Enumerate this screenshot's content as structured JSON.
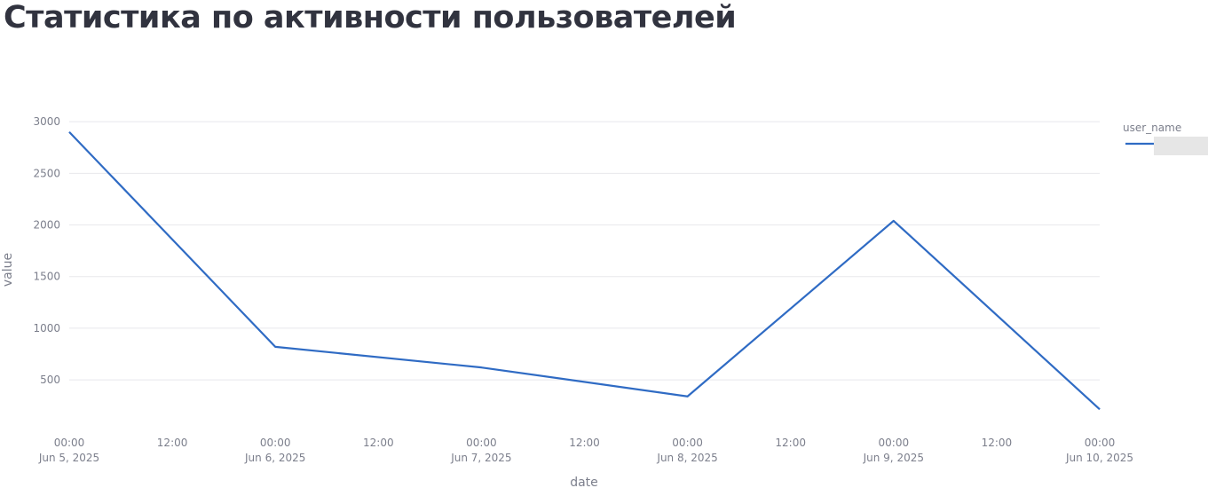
{
  "title": "Статистика по активности пользователей",
  "chart_data": {
    "type": "line",
    "x_label": "date",
    "y_label": "value",
    "legend_title": "user_name",
    "legend": "right",
    "x": [
      "2025-06-05",
      "2025-06-06",
      "2025-06-07",
      "2025-06-08",
      "2025-06-09",
      "2025-06-10"
    ],
    "series": [
      {
        "color": "#2f6bc4",
        "values": [
          2900,
          820,
          620,
          340,
          2040,
          215
        ]
      }
    ],
    "xlim": [
      "2025-06-05 00:00",
      "2025-06-10 00:00"
    ],
    "xticks": [
      {
        "value": "2025-06-05 00:00",
        "label": [
          "00:00",
          "Jun 5, 2025"
        ]
      },
      {
        "value": "2025-06-05 12:00",
        "label": "12:00"
      },
      {
        "value": "2025-06-06 00:00",
        "label": [
          "00:00",
          "Jun 6, 2025"
        ]
      },
      {
        "value": "2025-06-06 12:00",
        "label": "12:00"
      },
      {
        "value": "2025-06-07 00:00",
        "label": [
          "00:00",
          "Jun 7, 2025"
        ]
      },
      {
        "value": "2025-06-07 12:00",
        "label": "12:00"
      },
      {
        "value": "2025-06-08 00:00",
        "label": [
          "00:00",
          "Jun 8, 2025"
        ]
      },
      {
        "value": "2025-06-08 12:00",
        "label": "12:00"
      },
      {
        "value": "2025-06-09 00:00",
        "label": [
          "00:00",
          "Jun 9, 2025"
        ]
      },
      {
        "value": "2025-06-09 12:00",
        "label": "12:00"
      },
      {
        "value": "2025-06-10 00:00",
        "label": [
          "00:00",
          "Jun 10, 2025"
        ]
      }
    ],
    "ylim": [
      80,
      3040
    ],
    "yticks": [
      500,
      1000,
      1500,
      2000,
      2500,
      3000
    ],
    "grid": true
  }
}
